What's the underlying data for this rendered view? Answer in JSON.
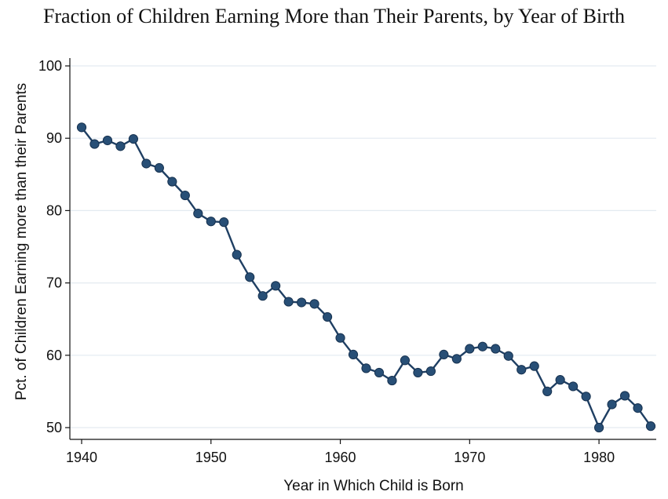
{
  "chart_data": {
    "type": "line",
    "title": "Fraction of Children Earning More than Their Parents, by Year of Birth",
    "xlabel": "Year in Which Child is Born",
    "ylabel": "Pct. of Children Earning more than their Parents",
    "xlim": [
      1940,
      1984
    ],
    "ylim": [
      50,
      100
    ],
    "xticks": [
      1940,
      1950,
      1960,
      1970,
      1980
    ],
    "yticks": [
      50,
      60,
      70,
      80,
      90,
      100
    ],
    "grid": true,
    "line_color": "#1f3f63",
    "marker_color": "#284f76",
    "series": [
      {
        "x": [
          1940,
          1941,
          1942,
          1943,
          1944,
          1945,
          1946,
          1947,
          1948,
          1949,
          1950,
          1951,
          1952,
          1953,
          1954,
          1955,
          1956,
          1957,
          1958,
          1959,
          1960,
          1961,
          1962,
          1963,
          1964,
          1965,
          1966,
          1967,
          1968,
          1969,
          1970,
          1971,
          1972,
          1973,
          1974,
          1975,
          1976,
          1977,
          1978,
          1979,
          1980,
          1981,
          1982,
          1983,
          1984
        ],
        "y": [
          91.5,
          89.2,
          89.7,
          88.9,
          89.9,
          86.5,
          85.9,
          84.0,
          82.1,
          79.6,
          78.5,
          78.4,
          73.9,
          70.8,
          68.2,
          69.6,
          67.4,
          67.3,
          67.1,
          65.3,
          62.4,
          60.1,
          58.2,
          57.6,
          56.5,
          59.3,
          57.6,
          57.8,
          60.1,
          59.5,
          60.9,
          61.2,
          60.9,
          59.9,
          58.0,
          58.5,
          55.0,
          56.6,
          55.7,
          54.3,
          50.0,
          53.2,
          54.4,
          52.7,
          50.2
        ]
      }
    ]
  }
}
